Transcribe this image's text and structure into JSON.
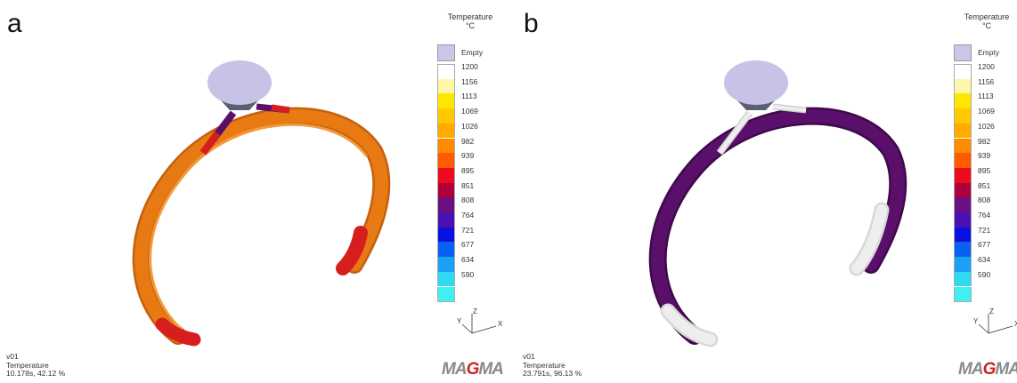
{
  "panels": [
    {
      "label": "a",
      "legend_title": "Temperature",
      "legend_unit": "°C",
      "info_line1": "v01",
      "info_line2": "Temperature",
      "info_line3": "10.178s, 42.12 %",
      "logo": "MAGMA",
      "part_color": "#e87a14",
      "hot_color": "#d61e1e",
      "dark_color": "#5a0f6a"
    },
    {
      "label": "b",
      "legend_title": "Temperature",
      "legend_unit": "°C",
      "info_line1": "v01",
      "info_line2": "Temperature",
      "info_line3": "23.791s, 96.13 %",
      "logo": "MAGMA",
      "part_color": "#5a0f6a",
      "hot_color": "#5a0f6a",
      "dark_color": "#5a0f6a"
    }
  ],
  "legend": {
    "empty_label": "Empty",
    "empty_color": "#cdc6ea",
    "entries": [
      {
        "value": "1200",
        "color": "#ffffff"
      },
      {
        "value": "1156",
        "color": "#fff7a8"
      },
      {
        "value": "1113",
        "color": "#ffe600"
      },
      {
        "value": "1069",
        "color": "#ffc800"
      },
      {
        "value": "1026",
        "color": "#ffab00"
      },
      {
        "value": "982",
        "color": "#ff8c00"
      },
      {
        "value": "939",
        "color": "#ff5a00"
      },
      {
        "value": "895",
        "color": "#ee0a1e"
      },
      {
        "value": "851",
        "color": "#b0003a"
      },
      {
        "value": "808",
        "color": "#6a1080"
      },
      {
        "value": "764",
        "color": "#4a10b0"
      },
      {
        "value": "721",
        "color": "#0a10e0"
      },
      {
        "value": "677",
        "color": "#0a60f0"
      },
      {
        "value": "634",
        "color": "#1aa0f5"
      },
      {
        "value": "590",
        "color": "#30d8f0"
      },
      {
        "value": "",
        "color": "#40f0f0"
      }
    ]
  },
  "axes": {
    "y_label": "Y",
    "z_label": "Z",
    "x_label": "X"
  },
  "empty_metal_color": "#e8e8e8",
  "sprue_color": "#c8c2e6"
}
